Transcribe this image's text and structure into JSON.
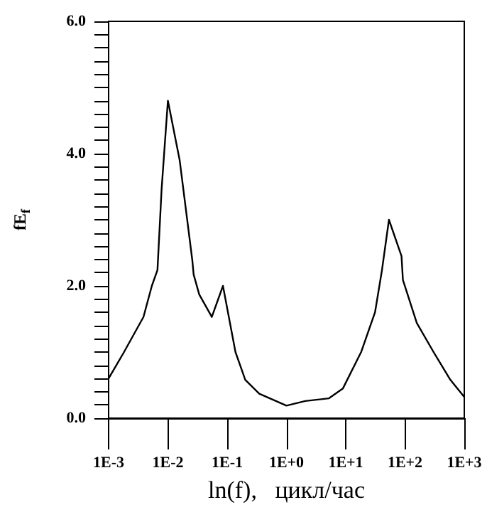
{
  "chart_data": {
    "type": "line",
    "xlabel": "ln(f),   цикл/час",
    "ylabel": "fE$_{f}$",
    "log": "x",
    "grid": false,
    "marker": "none",
    "line_style": "solid",
    "xlim": [
      0.001,
      1000
    ],
    "ylim": [
      0,
      6
    ],
    "xticks": [
      {
        "value": 0.001,
        "label": "1E-3"
      },
      {
        "value": 0.01,
        "label": "1E-2"
      },
      {
        "value": 0.1,
        "label": "1E-1"
      },
      {
        "value": 1,
        "label": "1E+0"
      },
      {
        "value": 10,
        "label": "1E+1"
      },
      {
        "value": 100,
        "label": "1E+2"
      },
      {
        "value": 1000,
        "label": "1E+3"
      }
    ],
    "yticks": [
      {
        "value": 0,
        "label": "0.0"
      },
      {
        "value": 0.2,
        "label": null
      },
      {
        "value": 0.4,
        "label": null
      },
      {
        "value": 0.6,
        "label": null
      },
      {
        "value": 0.8,
        "label": null
      },
      {
        "value": 1,
        "label": null
      },
      {
        "value": 1.2,
        "label": null
      },
      {
        "value": 1.4,
        "label": null
      },
      {
        "value": 1.6,
        "label": null
      },
      {
        "value": 1.8,
        "label": null
      },
      {
        "value": 2,
        "label": "2.0"
      },
      {
        "value": 2.2,
        "label": null
      },
      {
        "value": 2.4,
        "label": null
      },
      {
        "value": 2.6,
        "label": null
      },
      {
        "value": 2.8,
        "label": null
      },
      {
        "value": 3,
        "label": null
      },
      {
        "value": 3.2,
        "label": null
      },
      {
        "value": 3.4,
        "label": null
      },
      {
        "value": 3.6,
        "label": null
      },
      {
        "value": 3.8,
        "label": null
      },
      {
        "value": 4,
        "label": "4.0"
      },
      {
        "value": 4.2,
        "label": null
      },
      {
        "value": 4.4,
        "label": null
      },
      {
        "value": 4.6,
        "label": null
      },
      {
        "value": 4.8,
        "label": null
      },
      {
        "value": 5,
        "label": null
      },
      {
        "value": 5.2,
        "label": null
      },
      {
        "value": 5.4,
        "label": null
      },
      {
        "value": 5.6,
        "label": null
      },
      {
        "value": 5.8,
        "label": null
      },
      {
        "value": 6,
        "label": "6.0"
      }
    ],
    "series": [
      {
        "color": "#000000",
        "x": [
          0.001,
          0.00182,
          0.00387,
          0.00536,
          0.00667,
          0.00783,
          0.01,
          0.0158,
          0.0258,
          0.0272,
          0.0338,
          0.0551,
          0.0849,
          0.138,
          0.202,
          0.348,
          1.0,
          2.08,
          5.22,
          8.97,
          18.2,
          31.2,
          40.9,
          53.6,
          87.3,
          92.2,
          158,
          303,
          582,
          1000
        ],
        "values": [
          0.6,
          1.0,
          1.53,
          2.0,
          2.24,
          3.46,
          4.8,
          3.9,
          2.39,
          2.17,
          1.87,
          1.53,
          2.0,
          1.0,
          0.58,
          0.37,
          0.19,
          0.26,
          0.3,
          0.45,
          1.0,
          1.6,
          2.24,
          3.0,
          2.45,
          2.09,
          1.44,
          1.0,
          0.58,
          0.32
        ]
      }
    ]
  }
}
